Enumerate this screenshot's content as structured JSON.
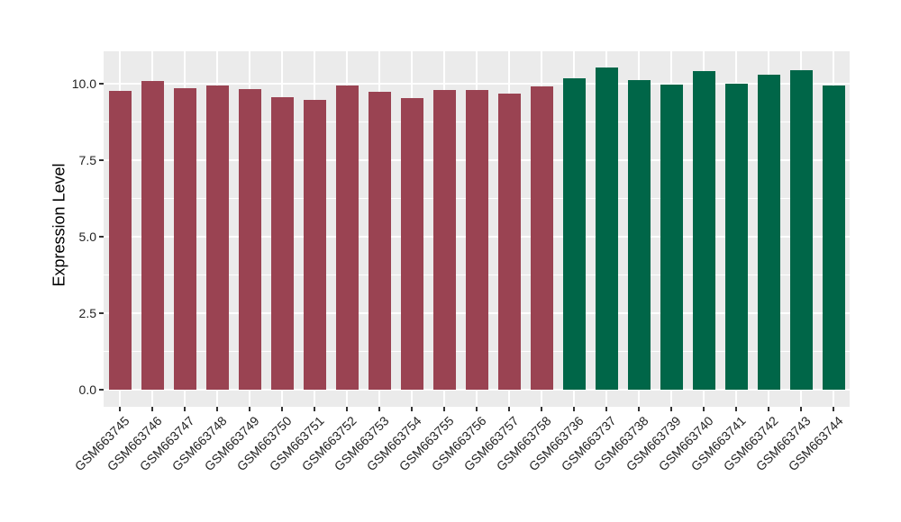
{
  "chart_data": {
    "type": "bar",
    "title": "",
    "xlabel": "",
    "ylabel": "Expression Level",
    "categories": [
      "GSM663745",
      "GSM663746",
      "GSM663747",
      "GSM663748",
      "GSM663749",
      "GSM663750",
      "GSM663751",
      "GSM663752",
      "GSM663753",
      "GSM663754",
      "GSM663755",
      "GSM663756",
      "GSM663757",
      "GSM663758",
      "GSM663736",
      "GSM663737",
      "GSM663738",
      "GSM663739",
      "GSM663740",
      "GSM663741",
      "GSM663742",
      "GSM663743",
      "GSM663744"
    ],
    "values": [
      9.77,
      10.09,
      9.85,
      9.93,
      9.82,
      9.56,
      9.47,
      9.95,
      9.74,
      9.53,
      9.79,
      9.78,
      9.68,
      9.91,
      10.18,
      10.54,
      10.11,
      9.98,
      10.4,
      10.01,
      10.28,
      10.43,
      9.94
    ],
    "group_colors": [
      {
        "color": "#9A4352",
        "start_index": 0,
        "end_index": 13
      },
      {
        "color": "#006648",
        "start_index": 14,
        "end_index": 22
      }
    ],
    "ytick_labels": [
      "0.0",
      "2.5",
      "5.0",
      "7.5",
      "10.0"
    ],
    "ytick_values": [
      0,
      2.5,
      5,
      7.5,
      10
    ],
    "yminor_values": [
      1.25,
      3.75,
      6.25,
      8.75
    ],
    "ylim": [
      -0.55,
      11.1
    ],
    "x_tick_rotation": 45,
    "grid": "on",
    "legend": "none",
    "panel_background": "#EBEBEB",
    "grid_color": "#FFFFFF"
  }
}
